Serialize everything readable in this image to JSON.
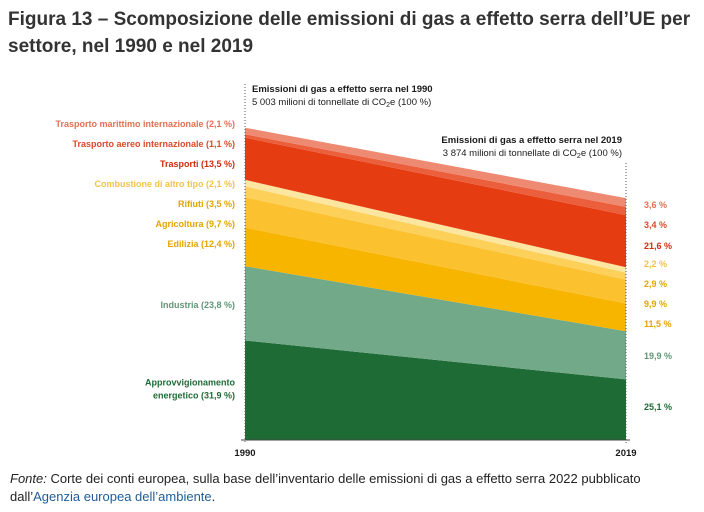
{
  "page": {
    "title": "Figura 13 – Scomposizione delle emissioni di gas a effetto serra dell’UE per settore, nel 1990 e nel 2019",
    "source_label": "Fonte:",
    "source_text": " Corte dei conti europea, sulla base dell’inventario delle emissioni di gas a effetto serra 2022 pubblicato dall’",
    "source_link": "Agenzia europea dell’ambiente",
    "source_end": "."
  },
  "chart_data": {
    "type": "area",
    "x": [
      "1990",
      "2019"
    ],
    "totals": [
      5003,
      3874
    ],
    "unit": "milioni di tonnellate di CO2e",
    "annotations": {
      "start_title": "Emissioni di gas a effetto serra nel 1990",
      "start_value": "5 003 milioni di tonnellate di CO",
      "start_sub": "2",
      "start_tail": "e (100 %)",
      "end_title": "Emissioni di gas a effetto serra nel 2019",
      "end_value": "3 874 milioni di tonnellate di CO",
      "end_sub": "2",
      "end_tail": "e (100 %)"
    },
    "series": [
      {
        "name": "Approvvigionamento energetico",
        "label_lines": [
          "Approvvigionamento",
          "energetico (31,9 %)"
        ],
        "values": [
          31.9,
          25.1
        ],
        "end_label": "25,1 %",
        "color": "#1e6b35"
      },
      {
        "name": "Industria",
        "label_lines": [
          "Industria (23,8 %)"
        ],
        "values": [
          23.8,
          19.9
        ],
        "end_label": "19,9 %",
        "color": "#72a988"
      },
      {
        "name": "Edilizia",
        "label_lines": [
          "Edilizia (12,4 %)"
        ],
        "values": [
          12.4,
          11.5
        ],
        "end_label": "11,5 %",
        "color": "#f7b500"
      },
      {
        "name": "Agricoltura",
        "label_lines": [
          "Agricoltura (9,7 %)"
        ],
        "values": [
          9.7,
          9.9
        ],
        "end_label": "9,9 %",
        "color": "#fbc12f"
      },
      {
        "name": "Rifiuti",
        "label_lines": [
          "Rifiuti (3,5 %)"
        ],
        "values": [
          3.5,
          2.9
        ],
        "end_label": "2,9 %",
        "color": "#fdd05a"
      },
      {
        "name": "Combustione di altro tipo",
        "label_lines": [
          "Combustione di altro tipo (2,1 %)"
        ],
        "values": [
          2.1,
          2.2
        ],
        "end_label": "2,2 %",
        "color": "#fde6a0"
      },
      {
        "name": "Trasporti",
        "label_lines": [
          "Trasporti (13,5 %)"
        ],
        "values": [
          13.5,
          21.6
        ],
        "end_label": "21,6 %",
        "color": "#e63c12"
      },
      {
        "name": "Trasporto aereo internazionale",
        "label_lines": [
          "Trasporto aereo internazionale (1,1 %)"
        ],
        "values": [
          1.1,
          3.4
        ],
        "end_label": "3,4 %",
        "color": "#eb5f3c"
      },
      {
        "name": "Trasporto marittimo internazionale",
        "label_lines": [
          "Trasporto marittimo internazionale (2,1 %)"
        ],
        "values": [
          2.1,
          3.6
        ],
        "end_label": "3,6 %",
        "color": "#ee8a72"
      }
    ],
    "label_colors": [
      "#1e6b35",
      "#5f9676",
      "#e3a400",
      "#e3a400",
      "#e3a400",
      "#f2c44a",
      "#d02c0c",
      "#d94a2a",
      "#e46f56"
    ],
    "end_label_colors": [
      "#1e6b35",
      "#5f9676",
      "#e3a400",
      "#e3a400",
      "#e3a400",
      "#f2c44a",
      "#d02c0c",
      "#d94a2a",
      "#e46f56"
    ]
  }
}
